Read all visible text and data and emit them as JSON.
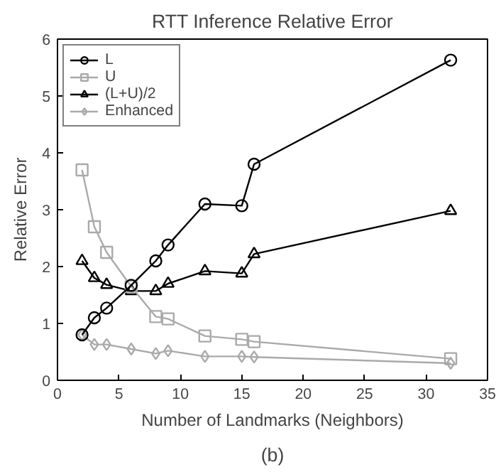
{
  "chart_data": {
    "type": "line",
    "title": "RTT Inference Relative Error",
    "xlabel": "Number of Landmarks (Neighbors)",
    "ylabel": "Relative Error",
    "annotations": [
      "(b)"
    ],
    "x": [
      2,
      3,
      4,
      6,
      8,
      9,
      12,
      15,
      16,
      32
    ],
    "series": [
      {
        "name": "L",
        "color": "#000000",
        "marker": "circle",
        "values": [
          0.8,
          1.1,
          1.27,
          1.67,
          2.1,
          2.38,
          3.1,
          3.07,
          3.8,
          5.63
        ]
      },
      {
        "name": "U",
        "color": "#aaaaaa",
        "marker": "square",
        "values": [
          3.7,
          2.7,
          2.25,
          1.65,
          1.12,
          1.08,
          0.78,
          0.72,
          0.68,
          0.38
        ]
      },
      {
        "name": "(L+U)/2",
        "color": "#000000",
        "marker": "triangle",
        "values": [
          2.1,
          1.8,
          1.68,
          1.57,
          1.57,
          1.7,
          1.92,
          1.88,
          2.22,
          2.98
        ]
      },
      {
        "name": "Enhanced",
        "color": "#aaaaaa",
        "marker": "diamond",
        "values": [
          0.8,
          0.63,
          0.63,
          0.55,
          0.47,
          0.52,
          0.42,
          0.42,
          0.41,
          0.3
        ]
      }
    ],
    "xlim": [
      0,
      35
    ],
    "xticks": [
      0,
      5,
      10,
      15,
      20,
      25,
      30,
      35
    ],
    "ylim": [
      0,
      6
    ],
    "yticks": [
      0,
      1,
      2,
      3,
      4,
      5,
      6
    ],
    "grid": false,
    "legend": "top left"
  }
}
